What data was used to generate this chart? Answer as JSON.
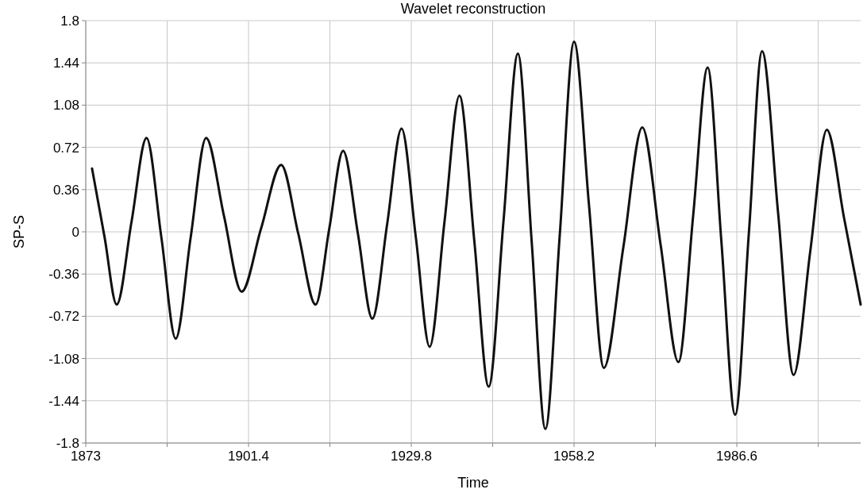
{
  "chart_data": {
    "type": "line",
    "title": "Wavelet reconstruction",
    "xlabel": "Time",
    "ylabel": "SP-S",
    "xlim": [
      1873,
      2008.2
    ],
    "xticks": [
      1873,
      {
        "value": 1887.2,
        "label": null
      },
      1901.4,
      {
        "value": 1915.6,
        "label": null
      },
      1929.8,
      {
        "value": 1944,
        "label": null
      },
      1958.2,
      {
        "value": 1972.4,
        "label": null
      },
      1986.6,
      {
        "value": 2000.8,
        "label": null
      }
    ],
    "ylim": [
      -1.8,
      1.8
    ],
    "yticks": [
      -1.8,
      -1.44,
      -1.08,
      -0.72,
      -0.36,
      0,
      0.36,
      0.72,
      1.08,
      1.44,
      1.8
    ],
    "grid": true,
    "marker": "none",
    "line_style": "solid",
    "series": [
      {
        "color": "#111111",
        "x": [
          1874.1,
          1876.3,
          1878.4,
          1881.0,
          1883.6,
          1886.2,
          1888.7,
          1891.3,
          1894.0,
          1897.1,
          1900.2,
          1903.6,
          1907.1,
          1910.1,
          1913.1,
          1915.5,
          1917.9,
          1920.5,
          1923.0,
          1925.6,
          1928.1,
          1930.6,
          1933.0,
          1935.6,
          1938.2,
          1940.8,
          1943.3,
          1945.9,
          1948.4,
          1950.8,
          1953.2,
          1955.7,
          1958.2,
          1960.8,
          1963.4,
          1966.8,
          1970.1,
          1973.3,
          1976.4,
          1979.0,
          1981.5,
          1983.9,
          1986.3,
          1988.7,
          1991.0,
          1993.8,
          1996.5,
          1999.4,
          2002.3,
          2005.3,
          2008.2
        ],
        "values": [
          0.54,
          -0.05,
          -0.62,
          0.09,
          0.8,
          -0.05,
          -0.91,
          -0.05,
          0.8,
          0.14,
          -0.51,
          0.03,
          0.57,
          -0.02,
          -0.62,
          0.03,
          0.69,
          -0.02,
          -0.74,
          0.07,
          0.88,
          -0.05,
          -0.98,
          0.09,
          1.16,
          -0.08,
          -1.32,
          0.1,
          1.52,
          -0.08,
          -1.68,
          -0.03,
          1.62,
          0.23,
          -1.16,
          -0.13,
          0.89,
          -0.11,
          -1.11,
          0.15,
          1.4,
          -0.08,
          -1.56,
          -0.01,
          1.54,
          0.16,
          -1.22,
          -0.17,
          0.87,
          0.12,
          -0.62
        ]
      }
    ]
  }
}
